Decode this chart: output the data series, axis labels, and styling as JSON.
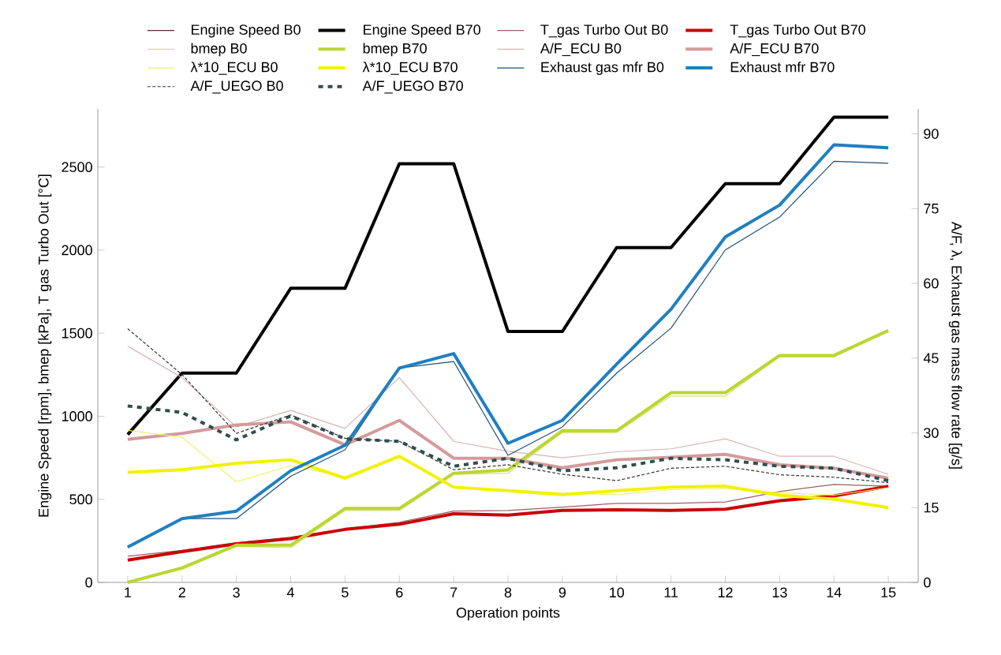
{
  "chart_data": {
    "type": "line",
    "xlabel": "Operation points",
    "ylabel": "Engine Speed [rpm], bmep [kPa], T gas Turbo Out [°C]",
    "y2label": "A/F, λ, Exhaust gas mass flow rate [g/s]",
    "categories": [
      "1",
      "2",
      "3",
      "4",
      "5",
      "6",
      "7",
      "8",
      "9",
      "10",
      "11",
      "12",
      "13",
      "14",
      "15"
    ],
    "ylim": [
      0,
      2850
    ],
    "yticks": [
      0,
      500,
      1000,
      1500,
      2000,
      2500
    ],
    "y2lim": [
      0,
      95
    ],
    "y2ticks": [
      0,
      15,
      30,
      45,
      60,
      75,
      90
    ],
    "legend": "top",
    "series": [
      {
        "name": "Engine Speed B0",
        "color": "#5a2a2a",
        "values": [
          null,
          null,
          null,
          null,
          null,
          null,
          null,
          null,
          null,
          null,
          null,
          null,
          null,
          null,
          null
        ]
      },
      {
        "name": "Engine Speed B70",
        "color": "#000000",
        "values": [
          890,
          1260,
          1260,
          1770,
          1770,
          2520,
          2520,
          1510,
          1510,
          2015,
          2015,
          2400,
          2400,
          2800,
          2800
        ]
      },
      {
        "name": "T_gas Turbo Out B0",
        "color": "#9b6060",
        "values": [
          157,
          193,
          240,
          272,
          323,
          362,
          429,
          433,
          453,
          476,
          476,
          484,
          547,
          590,
          579
        ]
      },
      {
        "name": "T_gas Turbo Out B70",
        "color": "#cc0000",
        "values": [
          134,
          185,
          232,
          264,
          319,
          350,
          413,
          405,
          433,
          437,
          433,
          441,
          492,
          520,
          579
        ]
      },
      {
        "name": "bmep B0",
        "color": "#d8e07a",
        "values": [
          0,
          79,
          217,
          209,
          433,
          433,
          650,
          657,
          902,
          902,
          1122,
          1122,
          1358,
          1358,
          1512
        ]
      },
      {
        "name": "bmep B70",
        "color": "#bcd631",
        "values": [
          0,
          87,
          224,
          224,
          445,
          445,
          657,
          677,
          913,
          913,
          1142,
          1142,
          1366,
          1366,
          1516
        ]
      },
      {
        "name": "A/F_ECU B0",
        "color": "#d9b3b3",
        "axis": "y2",
        "values": [
          47.4,
          41.1,
          31.2,
          34.5,
          30.9,
          41.1,
          28.3,
          26.3,
          25.0,
          26.2,
          26.8,
          28.8,
          25.3,
          25.3,
          21.7
        ]
      },
      {
        "name": "A/F_ECU B70",
        "color": "#d59a9a",
        "axis": "y2",
        "values": [
          28.7,
          29.9,
          31.6,
          32.2,
          27.6,
          32.5,
          24.9,
          24.9,
          23.0,
          24.6,
          25.1,
          25.7,
          23.6,
          22.9,
          20.9
        ]
      },
      {
        "name": "λ*10_ECU B0",
        "color": "#f0f070",
        "axis": "y2",
        "values": [
          30.5,
          29.1,
          20.2,
          23.4,
          21.2,
          25.4,
          19.1,
          18.6,
          17.9,
          17.6,
          18.6,
          18.8,
          18.0,
          17.5,
          19.0
        ]
      },
      {
        "name": "λ*10_ECU B70",
        "color": "#f2f200",
        "axis": "y2",
        "values": [
          22.1,
          22.6,
          23.9,
          24.6,
          20.9,
          25.3,
          19.1,
          18.4,
          17.6,
          18.4,
          19.1,
          19.3,
          17.5,
          16.7,
          15.0
        ]
      },
      {
        "name": "Exhaust gas mfr B0",
        "color": "#1f4e79",
        "axis": "y2",
        "values": [
          7.1,
          12.8,
          12.8,
          21.3,
          26.6,
          43.0,
          44.3,
          25.5,
          31.2,
          42.0,
          51.0,
          66.7,
          73.3,
          84.5,
          84.1
        ]
      },
      {
        "name": "Exhaust mfr B70",
        "color": "#1f7fc0",
        "axis": "y2",
        "values": [
          7.1,
          12.8,
          14.3,
          22.4,
          27.5,
          43.0,
          45.9,
          27.9,
          32.5,
          43.8,
          54.8,
          69.3,
          75.7,
          87.8,
          87.2
        ]
      },
      {
        "name": "A/F_UEGO B0",
        "color": "#333333",
        "axis": "y2",
        "line_style": "dotted",
        "values": [
          50.9,
          41.7,
          29.9,
          33.6,
          28.9,
          28.3,
          22.6,
          23.6,
          21.7,
          20.4,
          22.9,
          23.3,
          21.6,
          21.1,
          20.0
        ]
      },
      {
        "name": "A/F_UEGO B70",
        "color": "#2f4f4f",
        "axis": "y2",
        "line_style": "dashed",
        "values": [
          35.4,
          34.1,
          28.6,
          33.4,
          28.8,
          28.3,
          23.3,
          24.9,
          22.4,
          23.0,
          24.9,
          24.6,
          23.3,
          22.9,
          20.4
        ]
      }
    ]
  }
}
